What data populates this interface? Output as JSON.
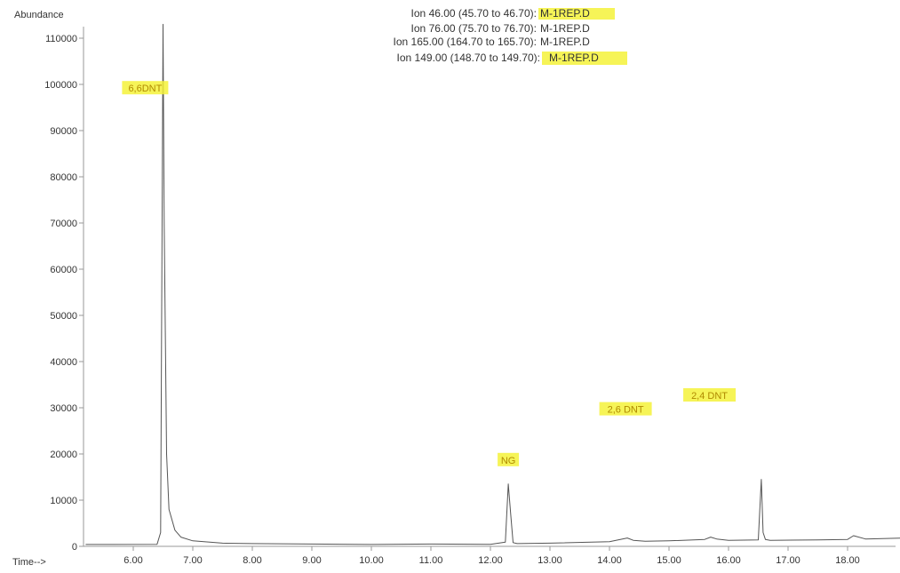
{
  "chart_data": {
    "type": "line",
    "xlabel": "Time-->",
    "ylabel": "Abundance",
    "xlim": [
      5.2,
      19.0
    ],
    "ylim": [
      0,
      115000
    ],
    "x_ticks": [
      "6.00",
      "7.00",
      "8.00",
      "9.00",
      "10.00",
      "11.00",
      "12.00",
      "13.00",
      "14.00",
      "15.00",
      "16.00",
      "17.00",
      "18.00"
    ],
    "y_ticks": [
      "0",
      "10000",
      "20000",
      "30000",
      "40000",
      "50000",
      "60000",
      "70000",
      "80000",
      "90000",
      "100000",
      "110000"
    ],
    "legend": [
      {
        "label": "Ion 46.00 (45.70 to 46.70):",
        "file": "M-1REP.D",
        "color": "#333333",
        "highlight": true
      },
      {
        "label": "Ion 76.00 (75.70 to 76.70):",
        "file": "M-1REP.D",
        "color": "#9a9a9a",
        "highlight": false
      },
      {
        "label": "Ion 165.00 (164.70 to 165.70):",
        "file": "M-1REP.D",
        "color": "#d0d0d0",
        "highlight": false
      },
      {
        "label": "Ion 149.00 (148.70 to 149.70):",
        "file": "M-1REP.D",
        "color": "#555555",
        "highlight": true
      }
    ],
    "series": [
      {
        "color": "#555555",
        "x": [
          5.2,
          6.4,
          6.46,
          6.5,
          6.52,
          6.56,
          6.6,
          6.7,
          6.8,
          7.0,
          7.5,
          8.0,
          9.0,
          10.0,
          11.0,
          12.0,
          12.25,
          12.3,
          12.34,
          12.38,
          12.45,
          13.0,
          14.0,
          14.3,
          14.4,
          14.6,
          15.0,
          15.6,
          15.7,
          15.8,
          16.0,
          16.5,
          16.55,
          16.58,
          16.62,
          16.7,
          17.5,
          18.0,
          18.1,
          18.3,
          19.0
        ],
        "y": [
          400,
          450,
          3000,
          113000,
          70000,
          20000,
          8000,
          3500,
          2000,
          1200,
          700,
          600,
          500,
          400,
          500,
          450,
          900,
          13500,
          7000,
          800,
          600,
          700,
          1000,
          1800,
          1300,
          1100,
          1200,
          1500,
          2000,
          1600,
          1300,
          1400,
          14500,
          3000,
          1500,
          1300,
          1400,
          1500,
          2300,
          1600,
          1800
        ]
      }
    ],
    "annotations": [
      {
        "text": "6,6DNT",
        "x": 6.2,
        "y": 99000
      },
      {
        "text": "NG",
        "x": 12.3,
        "y": 18500
      },
      {
        "text": "2,6 DNT",
        "x": 14.27,
        "y": 29500
      },
      {
        "text": "2,4 DNT",
        "x": 15.68,
        "y": 32500
      }
    ],
    "grid": false
  }
}
